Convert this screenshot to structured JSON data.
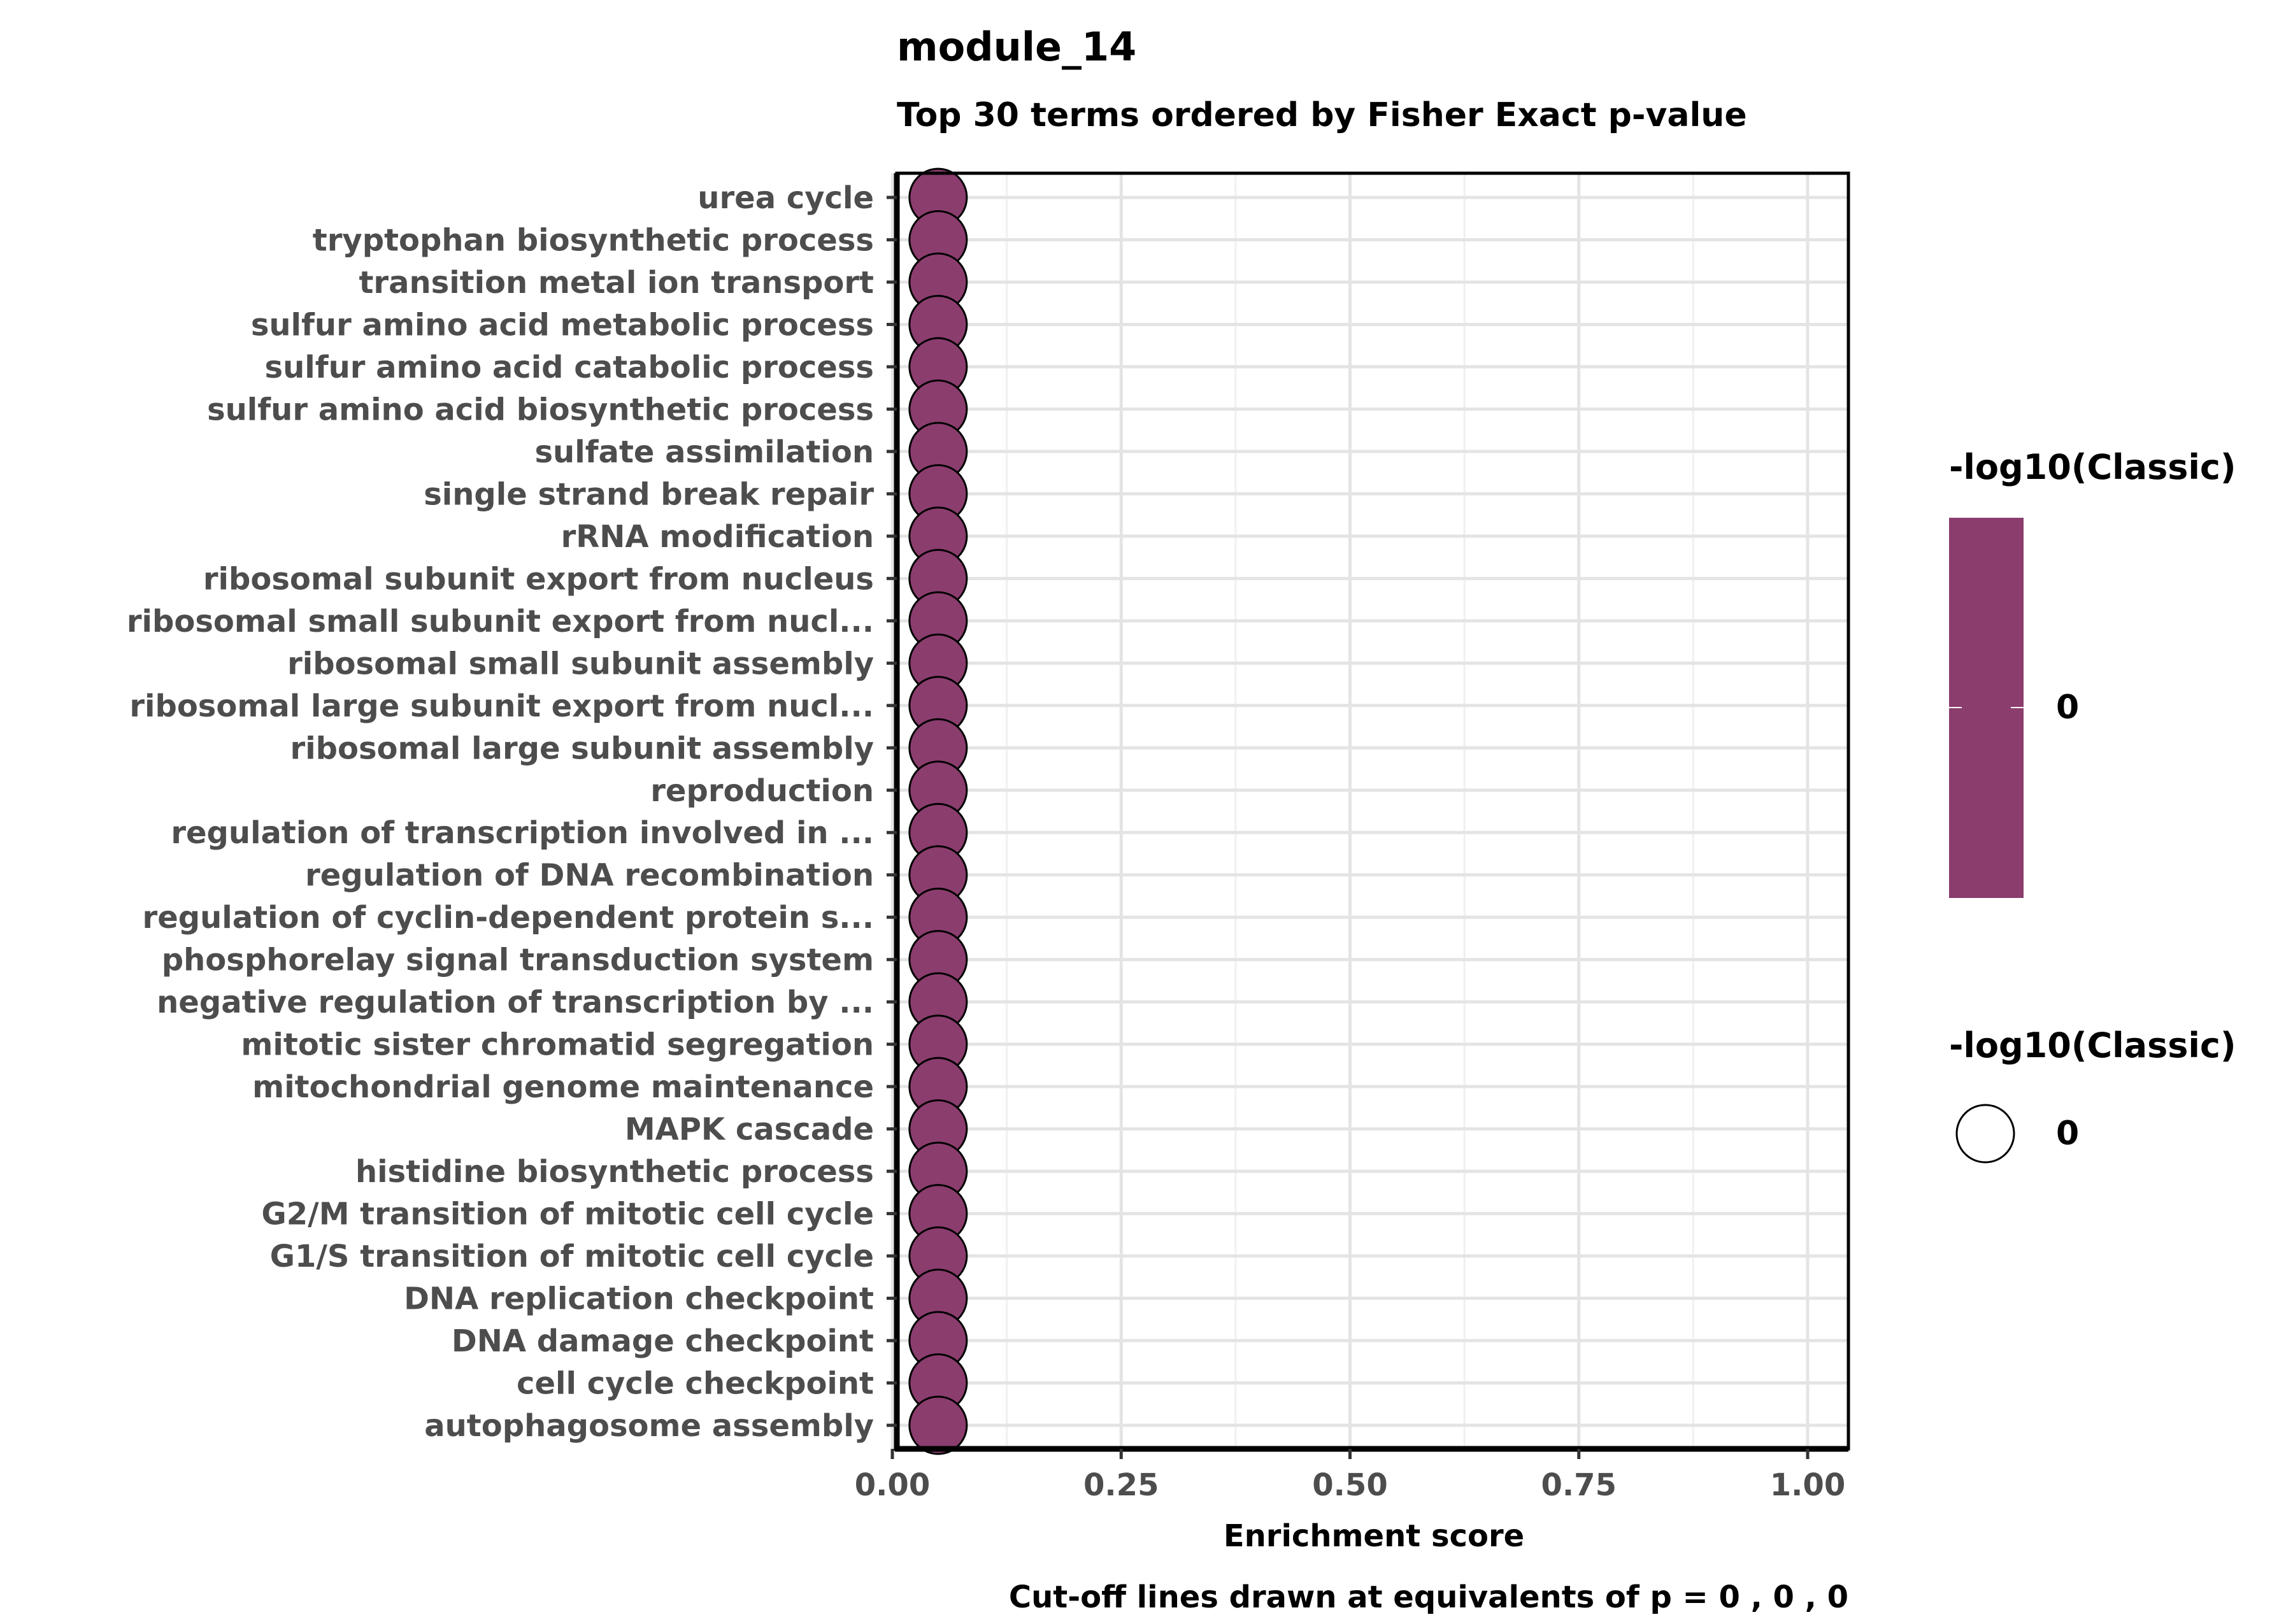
{
  "chart_data": {
    "type": "scatter",
    "title": "module_14",
    "subtitle": "Top 30 terms ordered by Fisher Exact p-value",
    "xlabel": "Enrichment score",
    "ylabel": "",
    "caption": "Cut-off lines drawn at equivalents of p = 0 , 0 , 0",
    "xlim": [
      0,
      1.05
    ],
    "x_ticks": [
      0,
      0.25,
      0.5,
      0.75,
      1.0
    ],
    "x_tick_labels": [
      "0.00",
      "0.25",
      "0.50",
      "0.75",
      "1.00"
    ],
    "cutoff_lines_x": [
      0.05,
      0.05,
      0.05
    ],
    "grid": true,
    "point_color": "#8b3d6e",
    "cutoff_color": "#000000",
    "categories": [
      "urea cycle",
      "tryptophan biosynthetic process",
      "transition metal ion transport",
      "sulfur amino acid metabolic process",
      "sulfur amino acid catabolic process",
      "sulfur amino acid biosynthetic process",
      "sulfate assimilation",
      "single strand break repair",
      "rRNA modification",
      "ribosomal subunit export from nucleus",
      "ribosomal small subunit export from nucl...",
      "ribosomal small subunit assembly",
      "ribosomal large subunit export from nucl...",
      "ribosomal large subunit assembly",
      "reproduction",
      "regulation of transcription involved in ...",
      "regulation of DNA recombination",
      "regulation of cyclin-dependent protein s...",
      "phosphorelay signal transduction system",
      "negative regulation of transcription by ...",
      "mitotic sister chromatid segregation",
      "mitochondrial genome maintenance",
      "MAPK cascade",
      "histidine biosynthetic process",
      "G2/M transition of mitotic cell cycle",
      "G1/S transition of mitotic cell cycle",
      "DNA replication checkpoint",
      "DNA damage checkpoint",
      "cell cycle checkpoint",
      "autophagosome assembly"
    ],
    "values": [
      0.05,
      0.05,
      0.05,
      0.05,
      0.05,
      0.05,
      0.05,
      0.05,
      0.05,
      0.05,
      0.05,
      0.05,
      0.05,
      0.05,
      0.05,
      0.05,
      0.05,
      0.05,
      0.05,
      0.05,
      0.05,
      0.05,
      0.05,
      0.05,
      0.05,
      0.05,
      0.05,
      0.05,
      0.05,
      0.05
    ],
    "legend_color": {
      "title": "-log10(Classic)",
      "label": "0"
    },
    "legend_size": {
      "title": "-log10(Classic)",
      "label": "0"
    }
  }
}
